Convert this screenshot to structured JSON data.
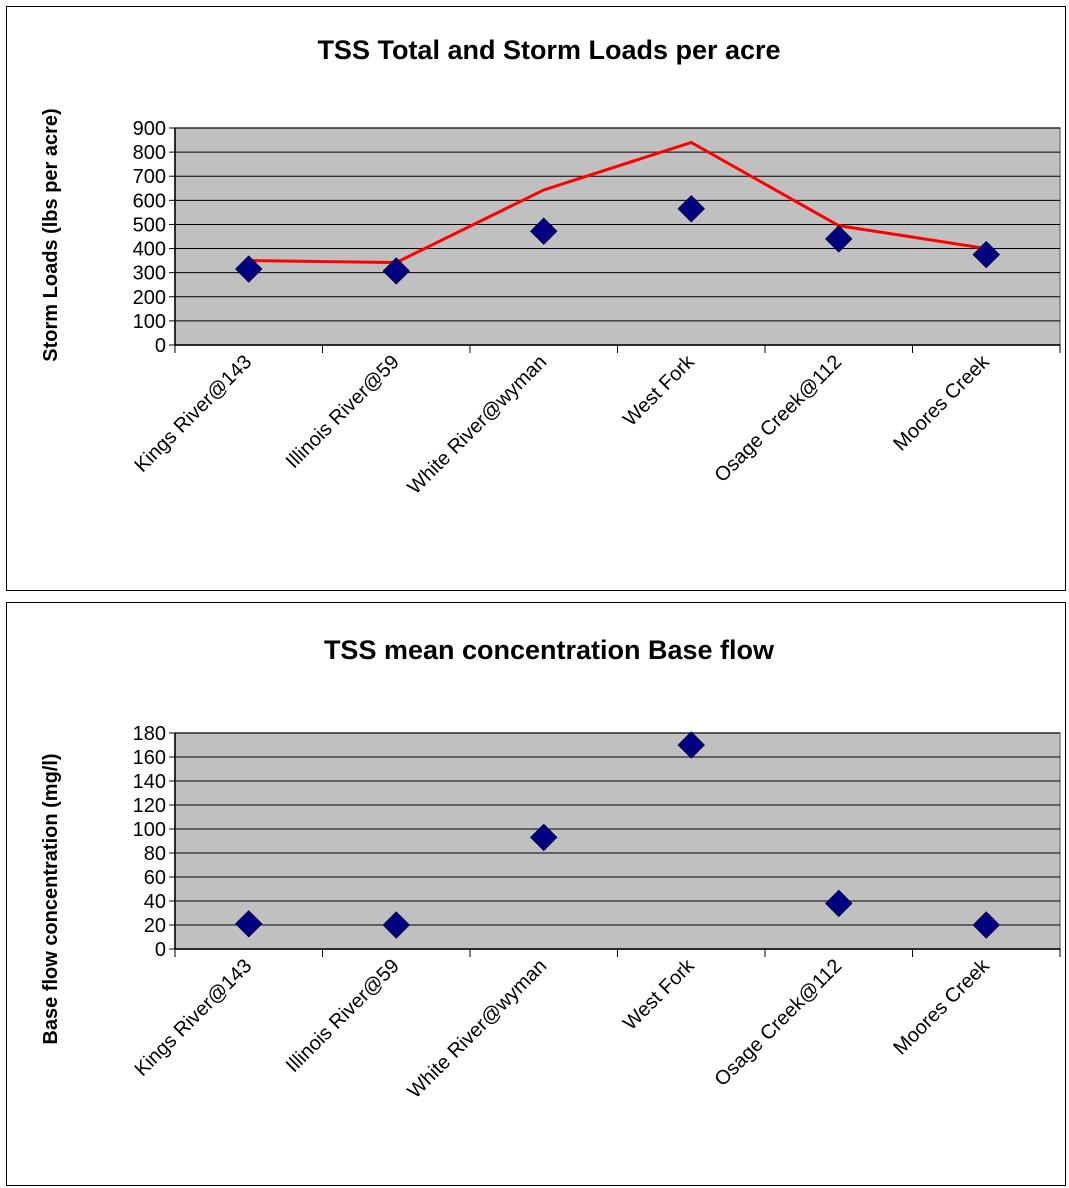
{
  "chart_data": [
    {
      "type": "line",
      "title": "TSS Total and Storm Loads per acre",
      "xlabel": "",
      "ylabel": "Storm Loads (lbs per acre)",
      "ylim": [
        0,
        900
      ],
      "yticks": [
        0,
        100,
        200,
        300,
        400,
        500,
        600,
        700,
        800,
        900
      ],
      "grid": true,
      "legend": "none",
      "categories": [
        "Kings River@143",
        "Illinois River@59",
        "White River@wyman",
        "West Fork",
        "Osage Creek@112",
        "Moores Creek"
      ],
      "series": [
        {
          "type": "line",
          "color": "#ff0000",
          "values": [
            350,
            342,
            643,
            840,
            495,
            400
          ]
        },
        {
          "type": "scatter",
          "marker": "diamond",
          "color": "#000080",
          "values": [
            315,
            307,
            472,
            565,
            440,
            375
          ]
        }
      ]
    },
    {
      "type": "scatter",
      "title": "TSS mean concentration Base flow",
      "xlabel": "",
      "ylabel": "Base flow concentration (mg/l)",
      "ylim": [
        0,
        180
      ],
      "yticks": [
        0,
        20,
        40,
        60,
        80,
        100,
        120,
        140,
        160,
        180
      ],
      "grid": true,
      "legend": "none",
      "categories": [
        "Kings River@143",
        "Illinois River@59",
        "White River@wyman",
        "West Fork",
        "Osage Creek@112",
        "Moores Creek"
      ],
      "series": [
        {
          "type": "scatter",
          "marker": "diamond",
          "color": "#000080",
          "values": [
            21,
            20,
            93,
            170,
            38,
            20
          ]
        }
      ]
    }
  ]
}
